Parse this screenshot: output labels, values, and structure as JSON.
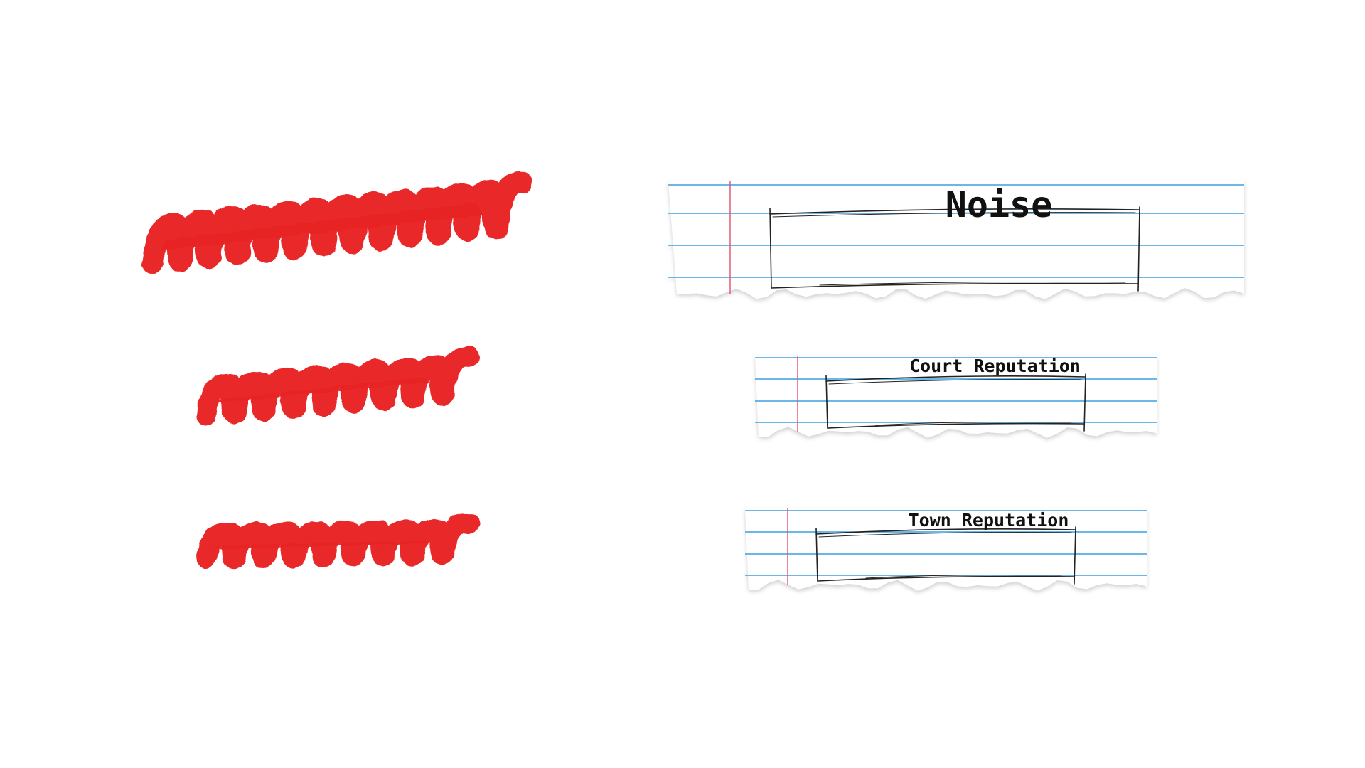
{
  "meters": [
    {
      "label": "Noise",
      "level": "high"
    },
    {
      "label": "Court Reputation",
      "level": "medium"
    },
    {
      "label": "Town Reputation",
      "level": "medium"
    }
  ],
  "colors": {
    "scribble": "#e82020",
    "paper": "#ffffff",
    "rule_line": "#3aa0e0",
    "margin_line": "#e05070",
    "sketch_box": "#222222"
  },
  "icons": {
    "scribble": "red-marker-scribble-icon",
    "paper": "torn-notebook-paper-icon"
  }
}
